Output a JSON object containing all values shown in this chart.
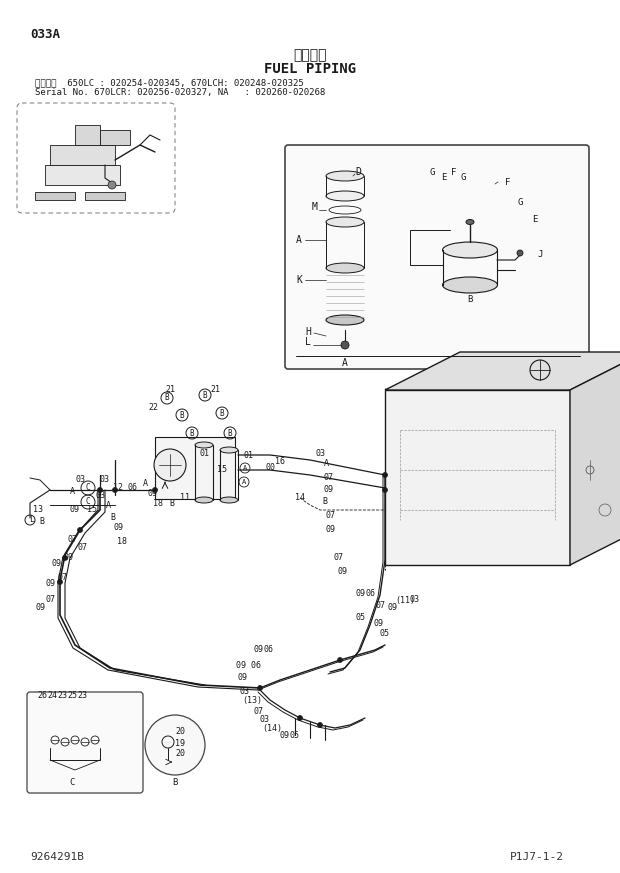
{
  "page_id": "033A",
  "title_jp": "燃料配管",
  "title_en": "FUEL PIPING",
  "serial_line1": "適用号機  650LC : 020254-020345, 670LCH: 020248-020325",
  "serial_line2": "Serial No. 670LCR: 020256-020327, NA   : 020260-020268",
  "page_ref": "P1J7-1-2",
  "doc_ref": "9264291B",
  "bg_color": "#ffffff",
  "line_color": "#1a1a1a",
  "gray": "#555555",
  "light_gray": "#999999"
}
